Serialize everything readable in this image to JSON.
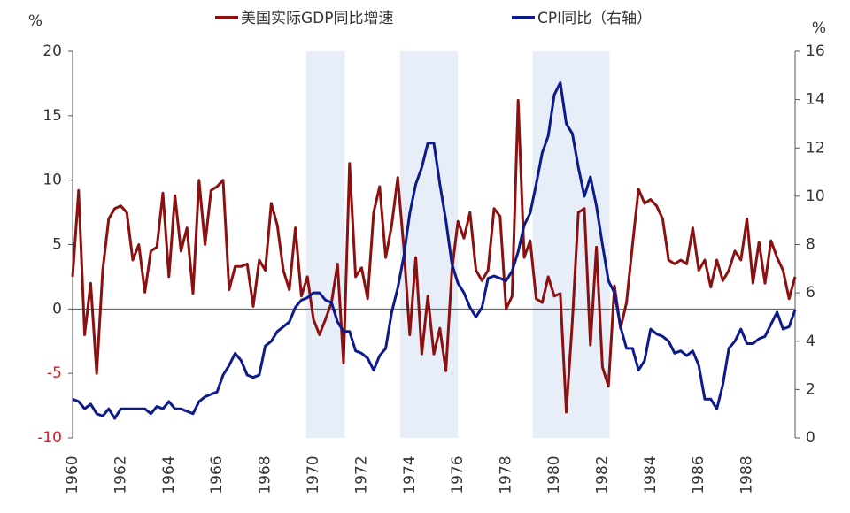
{
  "chart_data": {
    "type": "line",
    "y_unit": "%",
    "y2_unit": "%",
    "xlim": [
      1960,
      1990
    ],
    "xticks": [
      1960,
      1962,
      1964,
      1966,
      1968,
      1970,
      1972,
      1974,
      1976,
      1978,
      1980,
      1982,
      1984,
      1986,
      1988
    ],
    "ylim": [
      -10,
      20
    ],
    "yticks": [
      -10,
      -5,
      0,
      5,
      10,
      15,
      20
    ],
    "y2lim": [
      0,
      16
    ],
    "y2ticks": [
      0,
      2,
      4,
      6,
      8,
      10,
      12,
      14,
      16
    ],
    "negative_tick_color": "#e8141a",
    "shade_color": "#e8eef8",
    "shaded_periods": [
      [
        1969.7,
        1971.3
      ],
      [
        1973.6,
        1976.0
      ],
      [
        1979.1,
        1982.3
      ]
    ],
    "legend": "top",
    "x": [
      1960.0,
      1960.25,
      1960.5,
      1960.75,
      1961.0,
      1961.25,
      1961.5,
      1961.75,
      1962.0,
      1962.25,
      1962.5,
      1962.75,
      1963.0,
      1963.25,
      1963.5,
      1963.75,
      1964.0,
      1964.25,
      1964.5,
      1964.75,
      1965.0,
      1965.25,
      1965.5,
      1965.75,
      1966.0,
      1966.25,
      1966.5,
      1966.75,
      1967.0,
      1967.25,
      1967.5,
      1967.75,
      1968.0,
      1968.25,
      1968.5,
      1968.75,
      1969.0,
      1969.25,
      1969.5,
      1969.75,
      1970.0,
      1970.25,
      1970.5,
      1970.75,
      1971.0,
      1971.25,
      1971.5,
      1971.75,
      1972.0,
      1972.25,
      1972.5,
      1972.75,
      1973.0,
      1973.25,
      1973.5,
      1973.75,
      1974.0,
      1974.25,
      1974.5,
      1974.75,
      1975.0,
      1975.25,
      1975.5,
      1975.75,
      1976.0,
      1976.25,
      1976.5,
      1976.75,
      1977.0,
      1977.25,
      1977.5,
      1977.75,
      1978.0,
      1978.25,
      1978.5,
      1978.75,
      1979.0,
      1979.25,
      1979.5,
      1979.75,
      1980.0,
      1980.25,
      1980.5,
      1980.75,
      1981.0,
      1981.25,
      1981.5,
      1981.75,
      1982.0,
      1982.25,
      1982.5,
      1982.75,
      1983.0,
      1983.25,
      1983.5,
      1983.75,
      1984.0,
      1984.25,
      1984.5,
      1984.75,
      1985.0,
      1985.25,
      1985.5,
      1985.75,
      1986.0,
      1986.25,
      1986.5,
      1986.75,
      1987.0,
      1987.25,
      1987.5,
      1987.75,
      1988.0,
      1988.25,
      1988.5,
      1988.75,
      1989.0,
      1989.25,
      1989.5,
      1989.75,
      1990.0
    ],
    "series": [
      {
        "name": "美国实际GDP同比增速",
        "color": "#8b1010",
        "axis": "y",
        "values": [
          2.5,
          9.2,
          -2,
          2,
          -5,
          3,
          7,
          7.8,
          8,
          7.5,
          3.8,
          5,
          1.3,
          4.5,
          4.8,
          9,
          2.5,
          8.8,
          4.5,
          6.3,
          1.2,
          10,
          5,
          9.2,
          9.5,
          10,
          1.5,
          3.3,
          3.3,
          3.5,
          0.2,
          3.8,
          3,
          8.2,
          6.5,
          3,
          1.5,
          6.3,
          1.0,
          2.5,
          -0.8,
          -2,
          -0.8,
          0.5,
          3.5,
          -4.2,
          11.3,
          2.5,
          3.2,
          0.8,
          7.5,
          9.5,
          4,
          6.5,
          10.2,
          4.8,
          -2,
          4,
          -3.5,
          1,
          -3.5,
          -1.5,
          -4.8,
          3,
          6.8,
          5.5,
          7.5,
          3,
          2.2,
          3,
          7.8,
          7.2,
          0,
          1,
          16.2,
          4,
          5.3,
          0.8,
          0.5,
          2.5,
          1.0,
          1.2,
          -8,
          -1,
          7.5,
          7.8,
          -2.8,
          4.8,
          -4.5,
          -6,
          1.8,
          -1.5,
          0.5,
          5,
          9.3,
          8.2,
          8.5,
          8,
          7,
          3.8,
          3.5,
          3.8,
          3.5,
          6.3,
          3,
          3.8,
          1.7,
          3.8,
          2.2,
          3,
          4.5,
          3.8,
          7,
          2,
          5.2,
          2,
          5.3,
          4,
          3,
          0.8,
          2.5
        ]
      },
      {
        "name": "CPI同比（右轴）",
        "color": "#0c1a8c",
        "axis": "y2",
        "values": [
          1.6,
          1.5,
          1.2,
          1.4,
          1.0,
          0.9,
          1.2,
          0.8,
          1.2,
          1.2,
          1.2,
          1.2,
          1.2,
          1.0,
          1.3,
          1.2,
          1.5,
          1.2,
          1.2,
          1.1,
          1.0,
          1.5,
          1.7,
          1.8,
          1.9,
          2.6,
          3.0,
          3.5,
          3.2,
          2.6,
          2.5,
          2.6,
          3.8,
          4.0,
          4.4,
          4.6,
          4.8,
          5.4,
          5.7,
          5.8,
          6.0,
          6.0,
          5.7,
          5.6,
          4.8,
          4.4,
          4.4,
          3.6,
          3.5,
          3.3,
          2.8,
          3.4,
          3.7,
          5.2,
          6.2,
          7.5,
          9.3,
          10.5,
          11.2,
          12.2,
          12.2,
          10.5,
          9.0,
          7.2,
          6.4,
          6.0,
          5.4,
          5.0,
          5.4,
          6.6,
          6.7,
          6.6,
          6.5,
          6.9,
          7.7,
          8.8,
          9.3,
          10.5,
          11.8,
          12.5,
          14.2,
          14.7,
          13.0,
          12.6,
          11.2,
          10.0,
          10.8,
          9.6,
          8.0,
          6.5,
          6.0,
          4.6,
          3.7,
          3.7,
          2.8,
          3.2,
          4.5,
          4.3,
          4.2,
          4.0,
          3.5,
          3.6,
          3.4,
          3.6,
          3.0,
          1.6,
          1.6,
          1.2,
          2.2,
          3.7,
          4.0,
          4.5,
          3.9,
          3.9,
          4.1,
          4.2,
          4.7,
          5.2,
          4.5,
          4.6,
          5.3
        ]
      }
    ]
  }
}
